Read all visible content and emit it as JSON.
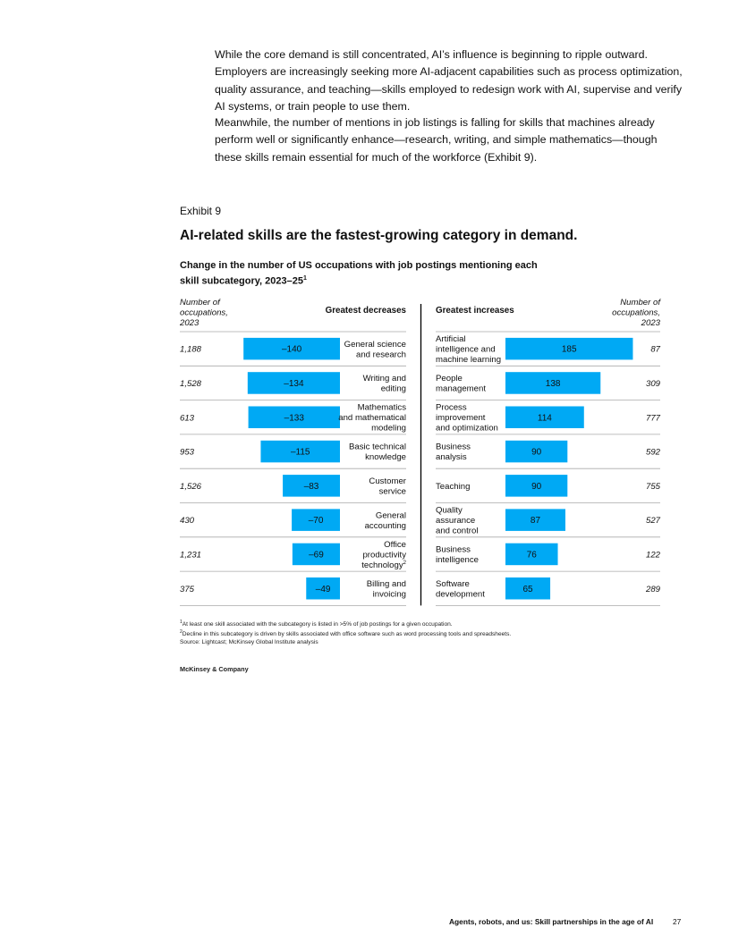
{
  "body_text": {
    "paragraph_1": "While the core demand is still concentrated, AI’s influence is beginning to ripple outward. Employers are increasingly seeking more AI-adjacent capabilities such as process optimization, quality assurance, and teaching—skills employed to redesign work with AI, supervise and verify AI systems, or train people to use them.",
    "paragraph_2": "Meanwhile, the number of mentions in job listings is falling for skills that machines already perform well or significantly enhance—research, writing, and simple mathematics—though these skills remain essential for much of the workforce (Exhibit 9)."
  },
  "exhibit": {
    "label": "Exhibit 9",
    "title": "AI-related skills are the fastest-growing category in demand.",
    "subtitle": "Change in the number of US occupations with job postings mentioning each skill subcategory, 2023–25",
    "subtitle_marker": "1"
  },
  "colors": {
    "bar": "#00a9f4",
    "divider": "#000000",
    "rule": "#aaaaaa"
  },
  "chart_data": {
    "type": "bar",
    "title": "Change in the number of US occupations with job postings mentioning each skill subcategory, 2023–25",
    "column_header_left": "Number of occupations, 2023",
    "column_header_right": "Number of occupations, 2023",
    "decreases": {
      "header": "Greatest decreases",
      "categories": [
        "General science and research",
        "Writing and editing",
        "Mathematics and mathematical modeling",
        "Basic technical knowledge",
        "Customer service",
        "General accounting",
        "Office productivity technology",
        "Billing and invoicing"
      ],
      "category_lines": [
        [
          "General science",
          "and research"
        ],
        [
          "Writing and",
          "editing"
        ],
        [
          "Mathematics",
          "and mathematical",
          "modeling"
        ],
        [
          "Basic technical",
          "knowledge"
        ],
        [
          "Customer",
          "service"
        ],
        [
          "General",
          "accounting"
        ],
        [
          "Office",
          "productivity",
          "technology"
        ],
        [
          "Billing and",
          "invoicing"
        ]
      ],
      "category_markers": [
        "",
        "",
        "",
        "",
        "",
        "",
        "2",
        ""
      ],
      "values": [
        -140,
        -134,
        -133,
        -115,
        -83,
        -70,
        -69,
        -49
      ],
      "labels": [
        "–140",
        "–134",
        "–133",
        "–115",
        "–83",
        "–70",
        "–69",
        "–49"
      ],
      "occupations_2023": [
        "1,188",
        "1,528",
        "613",
        "953",
        "1,526",
        "430",
        "1,231",
        "375"
      ]
    },
    "increases": {
      "header": "Greatest increases",
      "categories": [
        "Artificial intelligence and machine learning",
        "People management",
        "Process improvement and optimization",
        "Business analysis",
        "Teaching",
        "Quality assurance and control",
        "Business intelligence",
        "Software development"
      ],
      "category_lines": [
        [
          "Artificial",
          "intelligence and",
          "machine learning"
        ],
        [
          "People",
          "management"
        ],
        [
          "Process",
          "improvement",
          "and optimization"
        ],
        [
          "Business",
          "analysis"
        ],
        [
          "Teaching"
        ],
        [
          "Quality",
          "assurance",
          "and control"
        ],
        [
          "Business",
          "intelligence"
        ],
        [
          "Software",
          "development"
        ]
      ],
      "values": [
        185,
        138,
        114,
        90,
        90,
        87,
        76,
        65
      ],
      "labels": [
        "185",
        "138",
        "114",
        "90",
        "90",
        "87",
        "76",
        "65"
      ],
      "occupations_2023": [
        "87",
        "309",
        "777",
        "592",
        "755",
        "527",
        "122",
        "289"
      ]
    }
  },
  "footnotes": [
    {
      "marker": "1",
      "text": "At least one skill associated with the subcategory is listed in >5% of job postings for a given occupation."
    },
    {
      "marker": "2",
      "text": "Decline in this subcategory is driven by skills associated with office software such as word processing tools and spreadsheets."
    }
  ],
  "source": "Source: Lightcast; McKinsey Global Institute analysis",
  "brand": "McKinsey & Company",
  "footer": {
    "running_title": "Agents, robots, and us: Skill partnerships in the age of AI",
    "page_number": "27"
  }
}
